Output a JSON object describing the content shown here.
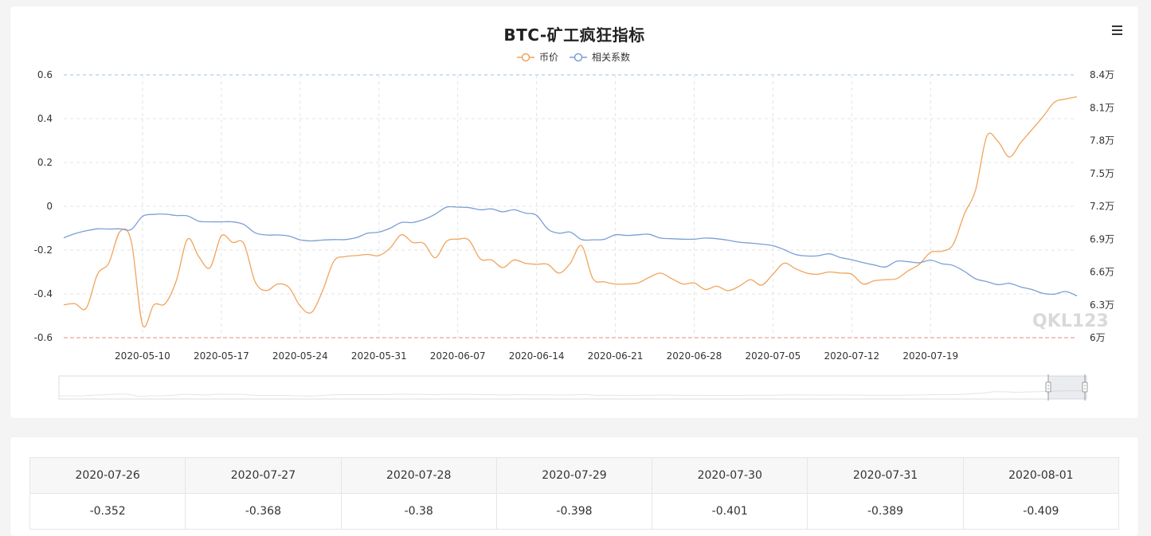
{
  "colors": {
    "price": "#f0a45c",
    "corr": "#7a9fd6",
    "grid": "#e3e3e3",
    "axis_text": "#333333",
    "top_line": "#9cc1e2",
    "bottom_line": "#e58a8a"
  },
  "menu_icon": "hamburger-menu-icon",
  "chart_data": {
    "type": "line",
    "title": "BTC-矿工疯狂指标",
    "legend_position": "top-center",
    "x_tick_labels": [
      "2020-05-10",
      "2020-05-17",
      "2020-05-24",
      "2020-05-31",
      "2020-06-07",
      "2020-06-14",
      "2020-06-21",
      "2020-06-28",
      "2020-07-05",
      "2020-07-12",
      "2020-07-19"
    ],
    "x_range": [
      "2020-05-03",
      "2020-08-01"
    ],
    "y_left": {
      "range": [
        -0.6,
        0.6
      ],
      "ticks": [
        "0.6",
        "0.4",
        "0.2",
        "0",
        "-0.2",
        "-0.4",
        "-0.6"
      ]
    },
    "y_right": {
      "range": [
        60000,
        84000
      ],
      "ticks": [
        "8.4万",
        "8.1万",
        "7.8万",
        "7.5万",
        "7.2万",
        "6.9万",
        "6.6万",
        "6.3万",
        "6万"
      ]
    },
    "series": [
      {
        "name": "币价",
        "axis": "right",
        "color": "#f0a45c",
        "points": [
          [
            "2020-05-03",
            63000
          ],
          [
            "2020-05-04",
            63100
          ],
          [
            "2020-05-05",
            62700
          ],
          [
            "2020-05-06",
            65800
          ],
          [
            "2020-05-07",
            66800
          ],
          [
            "2020-05-08",
            69700
          ],
          [
            "2020-05-09",
            68800
          ],
          [
            "2020-05-10",
            61200
          ],
          [
            "2020-05-11",
            63000
          ],
          [
            "2020-05-12",
            63100
          ],
          [
            "2020-05-13",
            65200
          ],
          [
            "2020-05-14",
            69000
          ],
          [
            "2020-05-15",
            67400
          ],
          [
            "2020-05-16",
            66400
          ],
          [
            "2020-05-17",
            69300
          ],
          [
            "2020-05-18",
            68700
          ],
          [
            "2020-05-19",
            68600
          ],
          [
            "2020-05-20",
            65100
          ],
          [
            "2020-05-21",
            64300
          ],
          [
            "2020-05-22",
            64900
          ],
          [
            "2020-05-23",
            64600
          ],
          [
            "2020-05-24",
            62900
          ],
          [
            "2020-05-25",
            62300
          ],
          [
            "2020-05-26",
            64300
          ],
          [
            "2020-05-27",
            67000
          ],
          [
            "2020-05-28",
            67400
          ],
          [
            "2020-05-29",
            67500
          ],
          [
            "2020-05-30",
            67600
          ],
          [
            "2020-05-31",
            67500
          ],
          [
            "2020-06-01",
            68200
          ],
          [
            "2020-06-02",
            69400
          ],
          [
            "2020-06-03",
            68700
          ],
          [
            "2020-06-04",
            68600
          ],
          [
            "2020-06-05",
            67300
          ],
          [
            "2020-06-06",
            68800
          ],
          [
            "2020-06-07",
            69000
          ],
          [
            "2020-06-08",
            68900
          ],
          [
            "2020-06-09",
            67200
          ],
          [
            "2020-06-10",
            67100
          ],
          [
            "2020-06-11",
            66400
          ],
          [
            "2020-06-12",
            67100
          ],
          [
            "2020-06-13",
            66800
          ],
          [
            "2020-06-14",
            66700
          ],
          [
            "2020-06-15",
            66700
          ],
          [
            "2020-06-16",
            65900
          ],
          [
            "2020-06-17",
            66800
          ],
          [
            "2020-06-18",
            68400
          ],
          [
            "2020-06-19",
            65400
          ],
          [
            "2020-06-20",
            65100
          ],
          [
            "2020-06-21",
            64900
          ],
          [
            "2020-06-22",
            64900
          ],
          [
            "2020-06-23",
            65000
          ],
          [
            "2020-06-24",
            65500
          ],
          [
            "2020-06-25",
            65900
          ],
          [
            "2020-06-26",
            65400
          ],
          [
            "2020-06-27",
            64900
          ],
          [
            "2020-06-28",
            65000
          ],
          [
            "2020-06-29",
            64400
          ],
          [
            "2020-06-30",
            64700
          ],
          [
            "2020-07-01",
            64300
          ],
          [
            "2020-07-02",
            64700
          ],
          [
            "2020-07-03",
            65300
          ],
          [
            "2020-07-04",
            64800
          ],
          [
            "2020-07-05",
            65800
          ],
          [
            "2020-07-06",
            66800
          ],
          [
            "2020-07-07",
            66300
          ],
          [
            "2020-07-08",
            65900
          ],
          [
            "2020-07-09",
            65800
          ],
          [
            "2020-07-10",
            66000
          ],
          [
            "2020-07-11",
            65900
          ],
          [
            "2020-07-12",
            65800
          ],
          [
            "2020-07-13",
            64900
          ],
          [
            "2020-07-14",
            65200
          ],
          [
            "2020-07-15",
            65300
          ],
          [
            "2020-07-16",
            65400
          ],
          [
            "2020-07-17",
            66100
          ],
          [
            "2020-07-18",
            66700
          ],
          [
            "2020-07-19",
            67800
          ],
          [
            "2020-07-20",
            67900
          ],
          [
            "2020-07-21",
            68500
          ],
          [
            "2020-07-22",
            71300
          ],
          [
            "2020-07-23",
            73500
          ],
          [
            "2020-07-24",
            78400
          ],
          [
            "2020-07-25",
            77900
          ],
          [
            "2020-07-26",
            76500
          ],
          [
            "2020-07-27",
            77800
          ],
          [
            "2020-07-28",
            79000
          ],
          [
            "2020-07-29",
            80200
          ],
          [
            "2020-07-30",
            81500
          ],
          [
            "2020-07-31",
            81800
          ],
          [
            "2020-08-01",
            82000
          ]
        ]
      },
      {
        "name": "相关系数",
        "axis": "left",
        "color": "#7a9fd6",
        "points": [
          [
            "2020-05-03",
            -0.144
          ],
          [
            "2020-05-04",
            -0.125
          ],
          [
            "2020-05-05",
            -0.112
          ],
          [
            "2020-05-06",
            -0.103
          ],
          [
            "2020-05-07",
            -0.104
          ],
          [
            "2020-05-08",
            -0.103
          ],
          [
            "2020-05-09",
            -0.106
          ],
          [
            "2020-05-10",
            -0.046
          ],
          [
            "2020-05-11",
            -0.037
          ],
          [
            "2020-05-12",
            -0.036
          ],
          [
            "2020-05-13",
            -0.042
          ],
          [
            "2020-05-14",
            -0.044
          ],
          [
            "2020-05-15",
            -0.068
          ],
          [
            "2020-05-16",
            -0.071
          ],
          [
            "2020-05-17",
            -0.071
          ],
          [
            "2020-05-18",
            -0.071
          ],
          [
            "2020-05-19",
            -0.083
          ],
          [
            "2020-05-20",
            -0.121
          ],
          [
            "2020-05-21",
            -0.131
          ],
          [
            "2020-05-22",
            -0.131
          ],
          [
            "2020-05-23",
            -0.136
          ],
          [
            "2020-05-24",
            -0.153
          ],
          [
            "2020-05-25",
            -0.158
          ],
          [
            "2020-05-26",
            -0.154
          ],
          [
            "2020-05-27",
            -0.152
          ],
          [
            "2020-05-28",
            -0.152
          ],
          [
            "2020-05-29",
            -0.143
          ],
          [
            "2020-05-30",
            -0.123
          ],
          [
            "2020-05-31",
            -0.118
          ],
          [
            "2020-06-01",
            -0.1
          ],
          [
            "2020-06-02",
            -0.074
          ],
          [
            "2020-06-03",
            -0.074
          ],
          [
            "2020-06-04",
            -0.06
          ],
          [
            "2020-06-05",
            -0.036
          ],
          [
            "2020-06-06",
            -0.004
          ],
          [
            "2020-06-07",
            -0.004
          ],
          [
            "2020-06-08",
            -0.006
          ],
          [
            "2020-06-09",
            -0.016
          ],
          [
            "2020-06-10",
            -0.012
          ],
          [
            "2020-06-11",
            -0.025
          ],
          [
            "2020-06-12",
            -0.016
          ],
          [
            "2020-06-13",
            -0.031
          ],
          [
            "2020-06-14",
            -0.041
          ],
          [
            "2020-06-15",
            -0.104
          ],
          [
            "2020-06-16",
            -0.123
          ],
          [
            "2020-06-17",
            -0.118
          ],
          [
            "2020-06-18",
            -0.152
          ],
          [
            "2020-06-19",
            -0.153
          ],
          [
            "2020-06-20",
            -0.151
          ],
          [
            "2020-06-21",
            -0.13
          ],
          [
            "2020-06-22",
            -0.133
          ],
          [
            "2020-06-23",
            -0.13
          ],
          [
            "2020-06-24",
            -0.128
          ],
          [
            "2020-06-25",
            -0.145
          ],
          [
            "2020-06-26",
            -0.148
          ],
          [
            "2020-06-27",
            -0.15
          ],
          [
            "2020-06-28",
            -0.15
          ],
          [
            "2020-06-29",
            -0.145
          ],
          [
            "2020-06-30",
            -0.148
          ],
          [
            "2020-07-01",
            -0.155
          ],
          [
            "2020-07-02",
            -0.164
          ],
          [
            "2020-07-03",
            -0.168
          ],
          [
            "2020-07-04",
            -0.173
          ],
          [
            "2020-07-05",
            -0.18
          ],
          [
            "2020-07-06",
            -0.198
          ],
          [
            "2020-07-07",
            -0.22
          ],
          [
            "2020-07-08",
            -0.227
          ],
          [
            "2020-07-09",
            -0.226
          ],
          [
            "2020-07-10",
            -0.217
          ],
          [
            "2020-07-11",
            -0.234
          ],
          [
            "2020-07-12",
            -0.244
          ],
          [
            "2020-07-13",
            -0.257
          ],
          [
            "2020-07-14",
            -0.268
          ],
          [
            "2020-07-15",
            -0.277
          ],
          [
            "2020-07-16",
            -0.251
          ],
          [
            "2020-07-17",
            -0.253
          ],
          [
            "2020-07-18",
            -0.258
          ],
          [
            "2020-07-19",
            -0.246
          ],
          [
            "2020-07-20",
            -0.262
          ],
          [
            "2020-07-21",
            -0.27
          ],
          [
            "2020-07-22",
            -0.297
          ],
          [
            "2020-07-23",
            -0.331
          ],
          [
            "2020-07-24",
            -0.344
          ],
          [
            "2020-07-25",
            -0.358
          ],
          [
            "2020-07-26",
            -0.352
          ],
          [
            "2020-07-27",
            -0.368
          ],
          [
            "2020-07-28",
            -0.38
          ],
          [
            "2020-07-29",
            -0.398
          ],
          [
            "2020-07-30",
            -0.401
          ],
          [
            "2020-07-31",
            -0.389
          ],
          [
            "2020-08-01",
            -0.409
          ]
        ]
      }
    ]
  },
  "watermark": "QKL123",
  "table": {
    "headers": [
      "2020-07-26",
      "2020-07-27",
      "2020-07-28",
      "2020-07-29",
      "2020-07-30",
      "2020-07-31",
      "2020-08-01"
    ],
    "values": [
      "-0.352",
      "-0.368",
      "-0.38",
      "-0.398",
      "-0.401",
      "-0.389",
      "-0.409"
    ]
  }
}
